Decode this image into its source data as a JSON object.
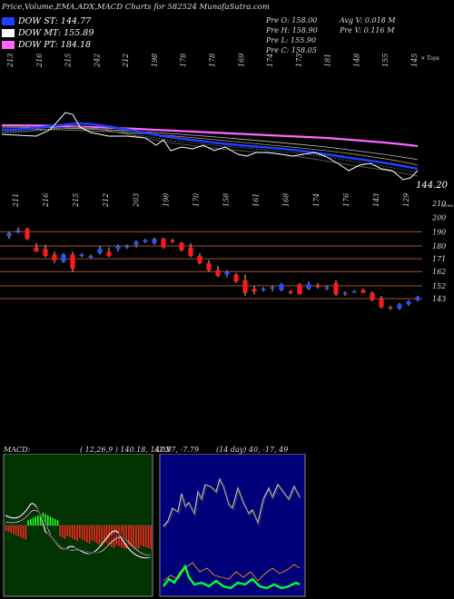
{
  "header": {
    "title": "Price,Volume,EMA,ADX,MACD Charts for 582524  MunafaSutra.com"
  },
  "legend": [
    {
      "label": "DOW ST: 144.77",
      "color": "#1f3fff"
    },
    {
      "label": "DOW MT: 155.89",
      "color": "#ffffff"
    },
    {
      "label": "DOW PT: 184.18",
      "color": "#ff66ff"
    }
  ],
  "stats": {
    "prev_open": "Pre   O: 158.00",
    "prev_high": "Pre   H: 158.90",
    "prev_low": "Pre   L: 155.90",
    "prev_close": "Pre   C: 158.05",
    "avg_volume": "Avg V: 0.018  M",
    "prev_volume": "Pre   V: 0.116  M"
  },
  "upper_price_labels": [
    "213",
    "216",
    "215",
    "242",
    "212",
    "198",
    "178",
    "178",
    "169",
    "174",
    "173",
    "181",
    "148",
    "155",
    "145"
  ],
  "lower_price_labels": [
    "211",
    "216",
    "215",
    "212",
    "203",
    "198",
    "170",
    "158",
    "161",
    "168",
    "174",
    "176",
    "143",
    "129"
  ],
  "corner_labels": {
    "top_right": "¤ Tops",
    "bottom_right": "Lows"
  },
  "last_value_label": "144.20",
  "colors": {
    "up_candle": "#2255ff",
    "down_candle": "#ff1a1a",
    "level_line": "#a0522d",
    "ema_short": "#1f3fff",
    "ema_mid": "#ffffff",
    "ema_long": "#ff66ff",
    "macd_bg": "#003300",
    "adx_bg": "#00007a"
  },
  "macd_panel": {
    "label": "MACD:",
    "values": "( 12,26,9 ) 140.18, 147.97, -7.79"
  },
  "adx_panel": {
    "label": "ADX",
    "values": "(14 day) 40, -17, 49"
  },
  "chart_data": {
    "type": "candlestick",
    "price_axis_ticks": [
      210,
      200,
      190,
      180,
      171,
      162,
      152,
      143
    ],
    "horizontal_levels": [
      190,
      180,
      171,
      162,
      152,
      143
    ],
    "candles": [
      {
        "o": 187,
        "h": 190,
        "l": 185,
        "c": 189
      },
      {
        "o": 190,
        "h": 193,
        "l": 189,
        "c": 191
      },
      {
        "o": 192,
        "h": 193,
        "l": 184,
        "c": 185
      },
      {
        "o": 179,
        "h": 182,
        "l": 176,
        "c": 176
      },
      {
        "o": 178,
        "h": 181,
        "l": 172,
        "c": 173
      },
      {
        "o": 174,
        "h": 176,
        "l": 168,
        "c": 170
      },
      {
        "o": 169,
        "h": 175,
        "l": 168,
        "c": 174
      },
      {
        "o": 174,
        "h": 176,
        "l": 162,
        "c": 164
      },
      {
        "o": 173,
        "h": 175,
        "l": 172,
        "c": 174
      },
      {
        "o": 172,
        "h": 174,
        "l": 171,
        "c": 173
      },
      {
        "o": 175,
        "h": 180,
        "l": 174,
        "c": 178
      },
      {
        "o": 176,
        "h": 179,
        "l": 172,
        "c": 173
      },
      {
        "o": 178,
        "h": 181,
        "l": 176,
        "c": 180
      },
      {
        "o": 179,
        "h": 181,
        "l": 178,
        "c": 180
      },
      {
        "o": 181,
        "h": 184,
        "l": 179,
        "c": 183
      },
      {
        "o": 183,
        "h": 185,
        "l": 182,
        "c": 184
      },
      {
        "o": 182,
        "h": 186,
        "l": 181,
        "c": 185
      },
      {
        "o": 185,
        "h": 186,
        "l": 178,
        "c": 179
      },
      {
        "o": 184,
        "h": 185,
        "l": 182,
        "c": 183
      },
      {
        "o": 182,
        "h": 183,
        "l": 176,
        "c": 177
      },
      {
        "o": 179,
        "h": 182,
        "l": 172,
        "c": 173
      },
      {
        "o": 173,
        "h": 175,
        "l": 167,
        "c": 168
      },
      {
        "o": 168,
        "h": 170,
        "l": 162,
        "c": 163
      },
      {
        "o": 163,
        "h": 166,
        "l": 158,
        "c": 159
      },
      {
        "o": 160,
        "h": 163,
        "l": 158,
        "c": 162
      },
      {
        "o": 160,
        "h": 161,
        "l": 154,
        "c": 155
      },
      {
        "o": 156,
        "h": 160,
        "l": 145,
        "c": 147
      },
      {
        "o": 150,
        "h": 152,
        "l": 146,
        "c": 148
      },
      {
        "o": 149,
        "h": 151,
        "l": 148,
        "c": 150
      },
      {
        "o": 150,
        "h": 152,
        "l": 148,
        "c": 151
      },
      {
        "o": 149,
        "h": 154,
        "l": 148,
        "c": 153
      },
      {
        "o": 148,
        "h": 149,
        "l": 146,
        "c": 147
      },
      {
        "o": 153,
        "h": 154,
        "l": 146,
        "c": 146
      },
      {
        "o": 150,
        "h": 155,
        "l": 149,
        "c": 153
      },
      {
        "o": 152,
        "h": 154,
        "l": 150,
        "c": 151
      },
      {
        "o": 150,
        "h": 152,
        "l": 149,
        "c": 151
      },
      {
        "o": 154,
        "h": 156,
        "l": 145,
        "c": 146
      },
      {
        "o": 147,
        "h": 148,
        "l": 145,
        "c": 147
      },
      {
        "o": 148,
        "h": 149,
        "l": 147,
        "c": 148
      },
      {
        "o": 149,
        "h": 150,
        "l": 147,
        "c": 147
      },
      {
        "o": 147,
        "h": 148,
        "l": 141,
        "c": 142
      },
      {
        "o": 143,
        "h": 145,
        "l": 136,
        "c": 137
      },
      {
        "o": 137,
        "h": 138,
        "l": 135,
        "c": 136
      },
      {
        "o": 136,
        "h": 140,
        "l": 135,
        "c": 139
      },
      {
        "o": 139,
        "h": 142,
        "l": 138,
        "c": 141
      },
      {
        "o": 142,
        "h": 145,
        "l": 141,
        "c": 144
      }
    ]
  }
}
